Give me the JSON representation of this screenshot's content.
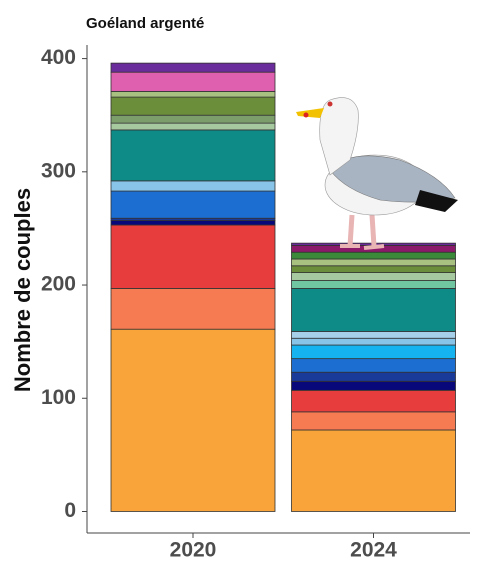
{
  "chart_data": {
    "type": "stacked_bar",
    "title": "Goéland argenté",
    "ylabel": "Nombre de couples",
    "categories": [
      "2020",
      "2024"
    ],
    "ylim": [
      -19,
      412
    ],
    "yticks": [
      0,
      100,
      200,
      300,
      400
    ],
    "series": [
      {
        "color": "#f9a43a",
        "values": [
          161,
          72
        ]
      },
      {
        "color": "#f77b52",
        "values": [
          36,
          16
        ]
      },
      {
        "color": "#e83d3d",
        "values": [
          56,
          19
        ]
      },
      {
        "color": "#08087a",
        "values": [
          4,
          8
        ]
      },
      {
        "color": "#1a3a9a",
        "values": [
          2,
          8
        ]
      },
      {
        "color": "#1c6fd1",
        "values": [
          24,
          12
        ]
      },
      {
        "color": "#15b4f0",
        "values": [
          0,
          12
        ]
      },
      {
        "color": "#87c4e8",
        "values": [
          9,
          6
        ]
      },
      {
        "color": "#a6d0ea",
        "values": [
          0,
          6
        ]
      },
      {
        "color": "#0e8b86",
        "values": [
          45,
          38
        ]
      },
      {
        "color": "#6fc6a0",
        "values": [
          0,
          7
        ]
      },
      {
        "color": "#a7c9a0",
        "values": [
          6,
          7
        ]
      },
      {
        "color": "#7c9e6a",
        "values": [
          7,
          0
        ]
      },
      {
        "color": "#6b8e3a",
        "values": [
          16,
          6
        ]
      },
      {
        "color": "#a8c080",
        "values": [
          5,
          6
        ]
      },
      {
        "color": "#3a8a3a",
        "values": [
          0,
          6
        ]
      },
      {
        "color": "#e060b0",
        "values": [
          17,
          0
        ]
      },
      {
        "color": "#8b1a6b",
        "values": [
          0,
          6
        ]
      },
      {
        "color": "#6a2c9a",
        "values": [
          8,
          2
        ]
      }
    ]
  }
}
